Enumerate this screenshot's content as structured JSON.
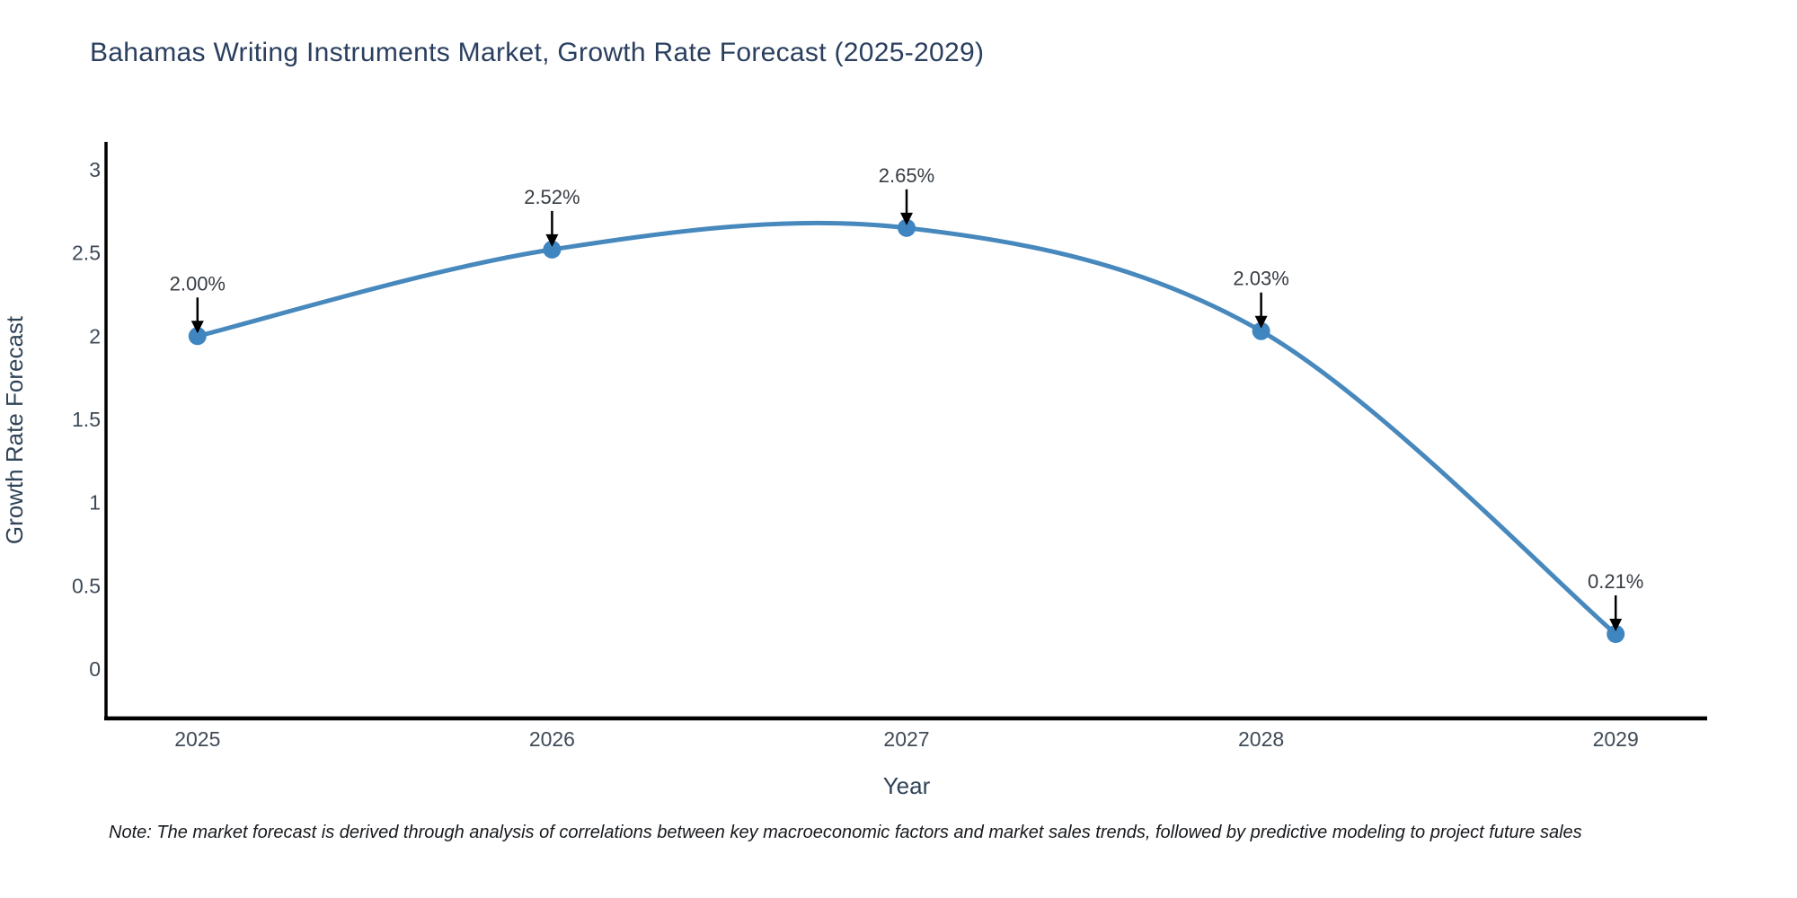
{
  "title": "Bahamas Writing Instruments Market, Growth Rate Forecast (2025-2029)",
  "note": "Note: The market forecast is derived through analysis of correlations between key macroeconomic factors and market sales trends, followed by predictive modeling to project future sales",
  "chart_data": {
    "type": "line",
    "title": "Bahamas Writing Instruments Market, Growth Rate Forecast (2025-2029)",
    "xlabel": "Year",
    "ylabel": "Growth Rate Forecast",
    "x": [
      2025,
      2026,
      2027,
      2028,
      2029
    ],
    "values": [
      2.0,
      2.52,
      2.65,
      2.03,
      0.21
    ],
    "point_labels": [
      "2.00%",
      "2.52%",
      "2.65%",
      "2.03%",
      "0.21%"
    ],
    "xtick_labels": [
      "2025",
      "2026",
      "2027",
      "2028",
      "2029"
    ],
    "yticks": [
      0,
      0.5,
      1,
      1.5,
      2,
      2.5,
      3
    ],
    "ytick_labels": [
      "0",
      "0.5",
      "1",
      "1.5",
      "2",
      "2.5",
      "3"
    ],
    "xlim": [
      2024.742,
      2029.258
    ],
    "ylim": [
      -0.297,
      3.167
    ],
    "grid": false,
    "legend": null,
    "line_shape": "spline",
    "colors": {
      "line": "#4788bd",
      "marker": "#3f86c0",
      "axis": "#000000",
      "tick_text": "#3f4a57",
      "axis_label_text": "#2f4357",
      "annotation_text": "#373d44",
      "annotation_arrow": "#000000",
      "title_text": "#2a3f5f",
      "background": "#ffffff"
    }
  }
}
